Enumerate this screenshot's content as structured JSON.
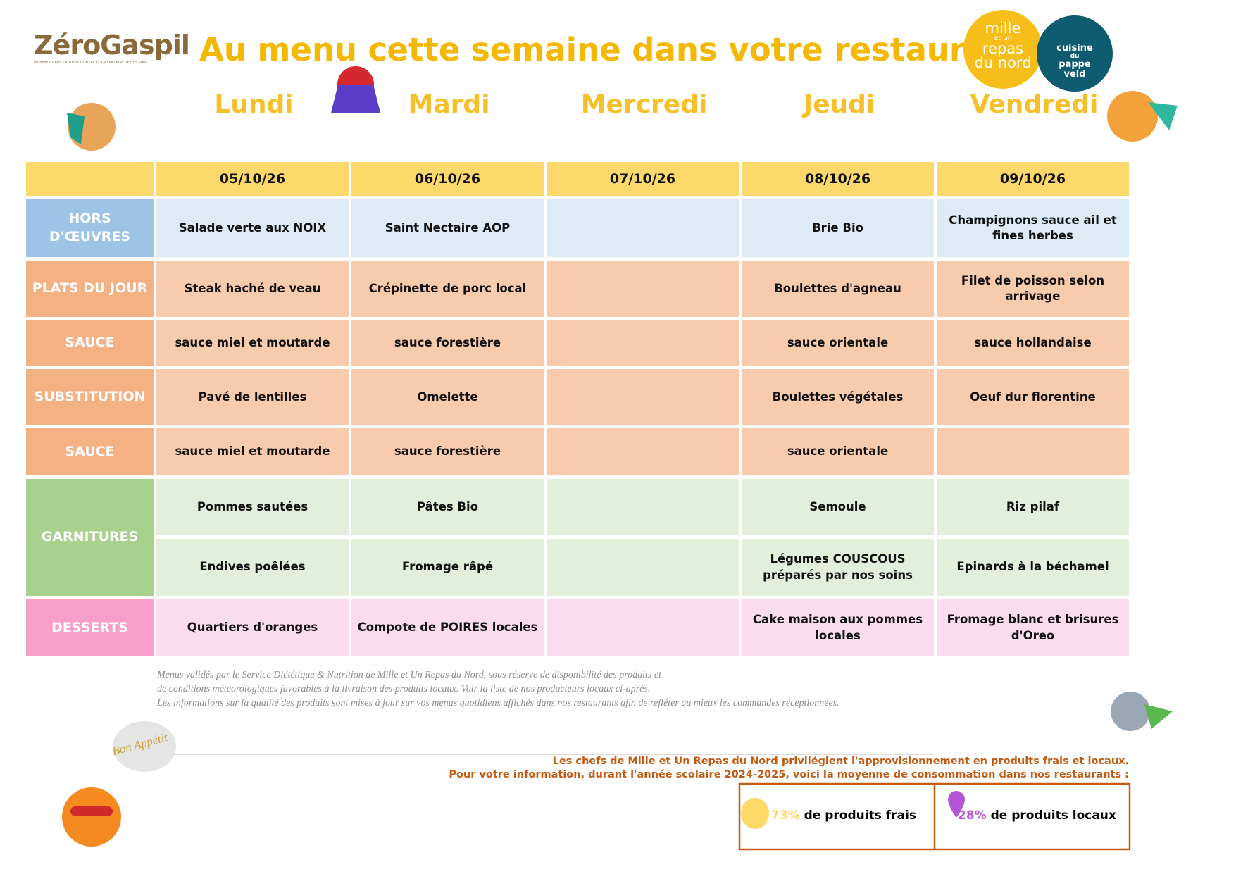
{
  "header": {
    "brand": "ZéroGaspil",
    "brand_tagline": "PIONNIER DANS LA LUTTE CONTRE LE GASPILLAGE DEPUIS 2007",
    "title": "Au menu cette semaine dans votre restaurant",
    "logo_left": [
      "mille",
      "et un",
      "repas",
      "du nord"
    ],
    "logo_right": [
      "cuisine",
      "du",
      "pappe",
      "veld"
    ]
  },
  "days": [
    "Lundi",
    "Mardi",
    "Mercredi",
    "Jeudi",
    "Vendredi"
  ],
  "dates": [
    "05/10/26",
    "06/10/26",
    "07/10/26",
    "08/10/26",
    "09/10/26"
  ],
  "rows": [
    {
      "label": "HORS D'ŒUVRES",
      "lines": [
        [
          "Salade verte aux NOIX",
          "Saint Nectaire AOP",
          null,
          "Brie Bio",
          "Champignons sauce ail et fines herbes"
        ]
      ]
    },
    {
      "label": "PLATS DU JOUR",
      "lines": [
        [
          "Steak haché de veau",
          "Crépinette de porc local",
          null,
          "Boulettes d'agneau",
          "Filet de poisson selon arrivage"
        ]
      ]
    },
    {
      "label": "SAUCE",
      "lines": [
        [
          "sauce miel et moutarde",
          "sauce forestière",
          null,
          "sauce orientale",
          "sauce hollandaise"
        ]
      ]
    },
    {
      "label": "SUBSTITUTION",
      "lines": [
        [
          "Pavé de lentilles",
          "Omelette",
          null,
          "Boulettes végétales",
          "Oeuf dur florentine"
        ]
      ]
    },
    {
      "label": "SAUCE",
      "lines": [
        [
          "sauce miel et moutarde",
          "sauce forestière",
          null,
          "sauce orientale",
          null
        ]
      ]
    },
    {
      "label": "GARNITURES",
      "lines": [
        [
          "Pommes sautées",
          "Pâtes Bio",
          null,
          "Semoule",
          "Riz pilaf"
        ],
        [
          "Endives poêlées",
          "Fromage râpé",
          null,
          "Légumes COUSCOUS préparés par nos soins",
          "Epinards à la béchamel"
        ]
      ]
    },
    {
      "label": "DESSERTS",
      "lines": [
        [
          "Quartiers d'oranges",
          "Compote de POIRES locales",
          null,
          "Cake maison aux pommes locales",
          "Fromage blanc et brisures d'Oreo"
        ]
      ]
    }
  ],
  "notes": [
    "Menus validés par le Service Diététique & Nutrition de Mille et Un Repas du Nord, sous réserve de disponibilité des produits et",
    "de conditions météorologiques favorables à la livraison des produits locaux. Voir la liste de nos producteurs locaux ci-après.",
    "Les informations sur la qualité des produits sont mises à jour sur vos menus quotidiens affichés dans nos restaurants afin de refléter au mieux les commandes réceptionnées."
  ],
  "sourcing": [
    "Les chefs de Mille et Un Repas du Nord privilégient l'approvisionnement en produits frais et locaux.",
    "Pour votre information, durant l'année scolaire 2024-2025, voici la moyenne de consommation dans nos restaurants :"
  ],
  "stats": [
    {
      "value": "73%",
      "label": "de produits frais"
    },
    {
      "value": "28%",
      "label": "de produits locaux"
    }
  ],
  "bon_appetit": "Bon Appétit"
}
